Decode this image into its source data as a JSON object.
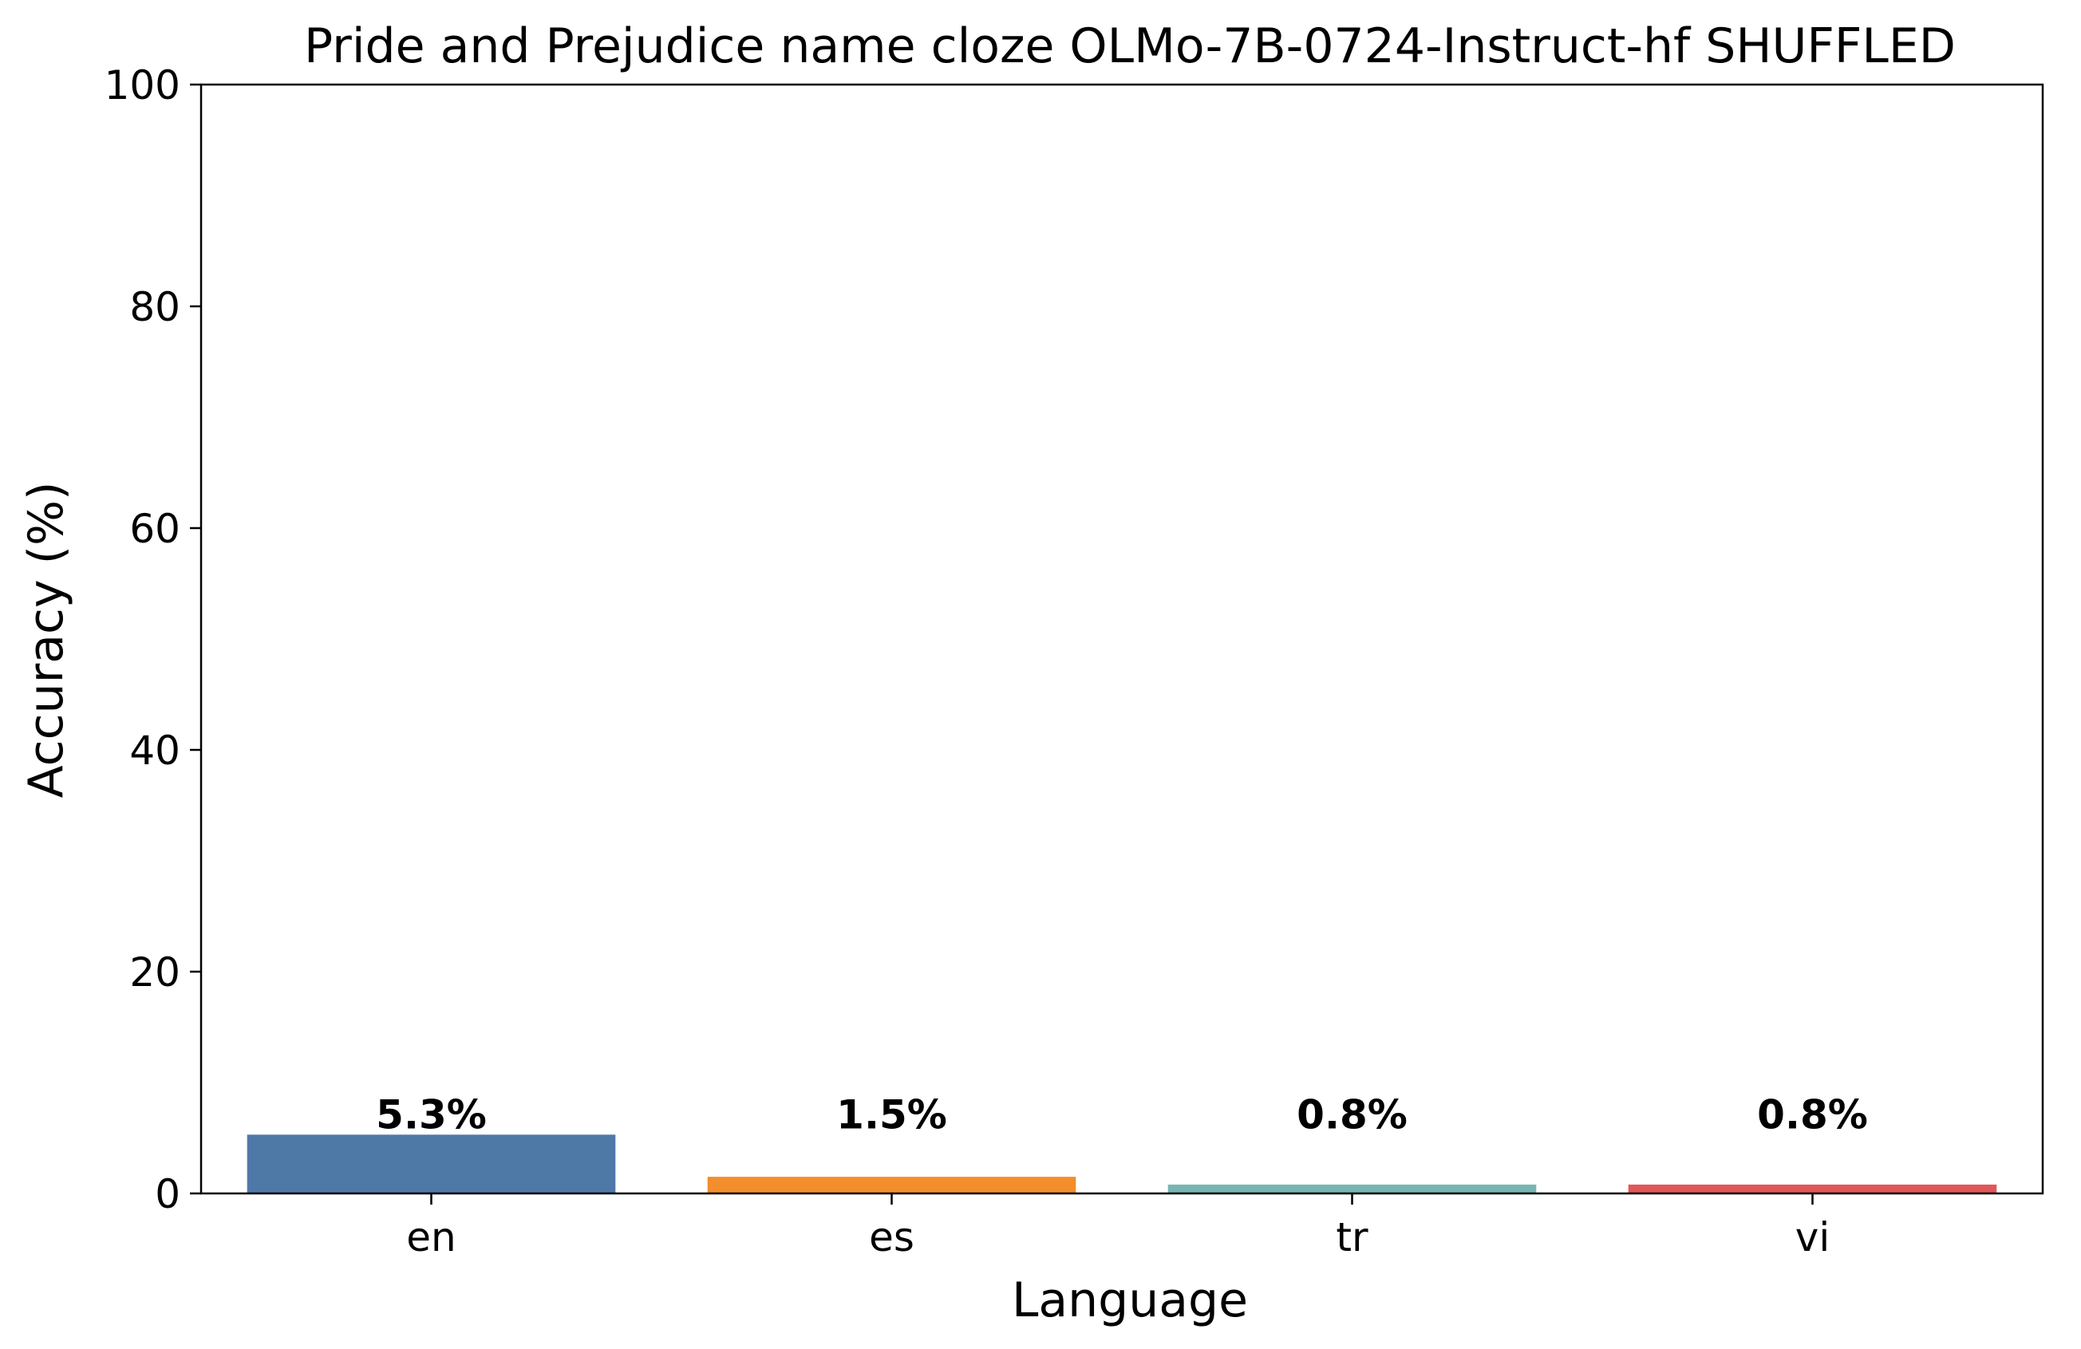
{
  "chart_data": {
    "type": "bar",
    "title": "Pride and Prejudice name cloze OLMo-7B-0724-Instruct-hf SHUFFLED",
    "xlabel": "Language",
    "ylabel": "Accuracy (%)",
    "categories": [
      "en",
      "es",
      "tr",
      "vi"
    ],
    "values": [
      5.3,
      1.5,
      0.8,
      0.8
    ],
    "data_labels": [
      "5.3%",
      "1.5%",
      "0.8%",
      "0.8%"
    ],
    "colors": [
      "#4e79a7",
      "#f28e2b",
      "#76b7b2",
      "#e15759"
    ],
    "ylim": [
      0,
      100
    ],
    "yticks": [
      0,
      20,
      40,
      60,
      80,
      100
    ],
    "grid": false,
    "legend": "none"
  }
}
